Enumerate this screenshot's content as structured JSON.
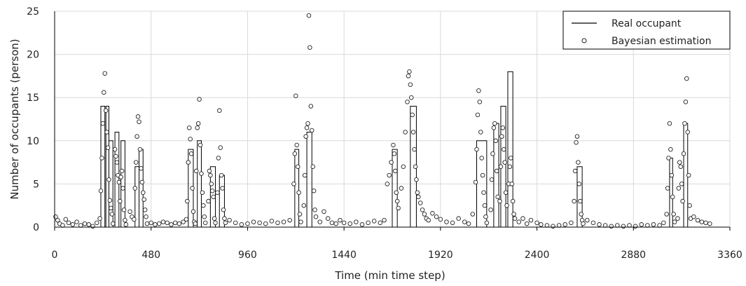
{
  "chart_data": {
    "type": "line",
    "xlabel": "Time (min time step)",
    "ylabel": "Number of occupants (person)",
    "xlim": [
      0,
      3360
    ],
    "ylim": [
      0,
      25
    ],
    "x_ticks": [
      0,
      480,
      960,
      1440,
      1920,
      2400,
      2880,
      3360
    ],
    "y_ticks": [
      0,
      5,
      10,
      15,
      20,
      25
    ],
    "grid": true,
    "legend_position": "top-right",
    "colors": {
      "line": "#000000",
      "marker_edge": "#222222",
      "grid": "#d9d9d9"
    },
    "series": [
      {
        "name": "Real occupant",
        "style": "step-line",
        "pulses": [
          [
            230,
            250,
            14
          ],
          [
            255,
            270,
            14
          ],
          [
            270,
            290,
            10
          ],
          [
            300,
            320,
            11
          ],
          [
            330,
            350,
            10
          ],
          [
            400,
            420,
            7
          ],
          [
            420,
            440,
            9
          ],
          [
            665,
            690,
            9
          ],
          [
            710,
            730,
            10
          ],
          [
            775,
            800,
            7
          ],
          [
            820,
            845,
            6
          ],
          [
            1195,
            1215,
            9
          ],
          [
            1255,
            1280,
            11
          ],
          [
            1680,
            1705,
            9
          ],
          [
            1770,
            1800,
            14
          ],
          [
            2100,
            2150,
            10
          ],
          [
            2185,
            2210,
            12
          ],
          [
            2220,
            2245,
            14
          ],
          [
            2255,
            2280,
            18
          ],
          [
            2600,
            2625,
            7
          ],
          [
            3060,
            3075,
            8
          ],
          [
            3130,
            3150,
            12
          ]
        ]
      },
      {
        "name": "Bayesian estimation",
        "style": "markers",
        "points": [
          [
            5,
            1.2
          ],
          [
            15,
            0.8
          ],
          [
            25,
            0.4
          ],
          [
            40,
            0.2
          ],
          [
            55,
            0.9
          ],
          [
            70,
            0.5
          ],
          [
            90,
            0.3
          ],
          [
            110,
            0.6
          ],
          [
            130,
            0.2
          ],
          [
            150,
            0.4
          ],
          [
            170,
            0.3
          ],
          [
            190,
            0.1
          ],
          [
            210,
            0.5
          ],
          [
            225,
            1.0
          ],
          [
            230,
            4.2
          ],
          [
            235,
            8.0
          ],
          [
            240,
            12.0
          ],
          [
            245,
            15.6
          ],
          [
            250,
            17.8
          ],
          [
            255,
            13.5
          ],
          [
            260,
            11.0
          ],
          [
            265,
            9.2
          ],
          [
            270,
            5.5
          ],
          [
            275,
            3.1
          ],
          [
            280,
            2.2
          ],
          [
            285,
            1.5
          ],
          [
            290,
            0.4
          ],
          [
            300,
            9.0
          ],
          [
            305,
            8.2
          ],
          [
            310,
            7.5
          ],
          [
            315,
            6.0
          ],
          [
            320,
            5.2
          ],
          [
            325,
            3.0
          ],
          [
            330,
            5.8
          ],
          [
            335,
            6.5
          ],
          [
            340,
            4.5
          ],
          [
            345,
            2.0
          ],
          [
            350,
            0.8
          ],
          [
            355,
            0.3
          ],
          [
            375,
            1.8
          ],
          [
            385,
            1.2
          ],
          [
            395,
            0.9
          ],
          [
            400,
            4.5
          ],
          [
            405,
            7.5
          ],
          [
            410,
            10.5
          ],
          [
            415,
            12.8
          ],
          [
            420,
            12.2
          ],
          [
            425,
            9.0
          ],
          [
            430,
            6.8
          ],
          [
            435,
            5.2
          ],
          [
            440,
            4.0
          ],
          [
            445,
            3.2
          ],
          [
            450,
            2.0
          ],
          [
            455,
            1.2
          ],
          [
            460,
            0.4
          ],
          [
            480,
            0.5
          ],
          [
            500,
            0.3
          ],
          [
            520,
            0.4
          ],
          [
            540,
            0.6
          ],
          [
            560,
            0.5
          ],
          [
            580,
            0.3
          ],
          [
            600,
            0.5
          ],
          [
            620,
            0.4
          ],
          [
            640,
            0.6
          ],
          [
            655,
            0.9
          ],
          [
            660,
            3.0
          ],
          [
            665,
            7.5
          ],
          [
            670,
            11.5
          ],
          [
            675,
            10.2
          ],
          [
            680,
            8.5
          ],
          [
            685,
            4.5
          ],
          [
            690,
            1.8
          ],
          [
            695,
            0.6
          ],
          [
            700,
            0.4
          ],
          [
            705,
            6.5
          ],
          [
            710,
            11.5
          ],
          [
            715,
            12.0
          ],
          [
            720,
            14.8
          ],
          [
            725,
            9.5
          ],
          [
            730,
            6.2
          ],
          [
            735,
            4.0
          ],
          [
            740,
            2.5
          ],
          [
            745,
            1.2
          ],
          [
            750,
            0.5
          ],
          [
            765,
            3.0
          ],
          [
            770,
            6.5
          ],
          [
            775,
            6.0
          ],
          [
            780,
            5.0
          ],
          [
            785,
            4.2
          ],
          [
            790,
            3.5
          ],
          [
            795,
            1.0
          ],
          [
            800,
            0.5
          ],
          [
            810,
            4.0
          ],
          [
            815,
            8.0
          ],
          [
            820,
            13.5
          ],
          [
            825,
            9.2
          ],
          [
            830,
            6.0
          ],
          [
            835,
            4.5
          ],
          [
            840,
            2.0
          ],
          [
            845,
            1.0
          ],
          [
            850,
            0.5
          ],
          [
            870,
            0.8
          ],
          [
            900,
            0.5
          ],
          [
            930,
            0.3
          ],
          [
            960,
            0.4
          ],
          [
            990,
            0.6
          ],
          [
            1020,
            0.5
          ],
          [
            1050,
            0.4
          ],
          [
            1080,
            0.7
          ],
          [
            1110,
            0.5
          ],
          [
            1140,
            0.6
          ],
          [
            1170,
            0.8
          ],
          [
            1190,
            5.0
          ],
          [
            1195,
            8.5
          ],
          [
            1200,
            15.2
          ],
          [
            1205,
            9.5
          ],
          [
            1210,
            7.0
          ],
          [
            1215,
            4.0
          ],
          [
            1220,
            1.5
          ],
          [
            1225,
            0.6
          ],
          [
            1240,
            2.5
          ],
          [
            1245,
            6.0
          ],
          [
            1250,
            10.5
          ],
          [
            1255,
            11.5
          ],
          [
            1260,
            12.0
          ],
          [
            1265,
            24.5
          ],
          [
            1270,
            20.8
          ],
          [
            1275,
            14.0
          ],
          [
            1280,
            11.2
          ],
          [
            1285,
            7.0
          ],
          [
            1290,
            4.2
          ],
          [
            1295,
            2.0
          ],
          [
            1300,
            1.2
          ],
          [
            1320,
            0.6
          ],
          [
            1340,
            1.8
          ],
          [
            1360,
            1.0
          ],
          [
            1380,
            0.5
          ],
          [
            1400,
            0.4
          ],
          [
            1420,
            0.8
          ],
          [
            1440,
            0.5
          ],
          [
            1470,
            0.4
          ],
          [
            1500,
            0.6
          ],
          [
            1530,
            0.3
          ],
          [
            1560,
            0.5
          ],
          [
            1590,
            0.7
          ],
          [
            1620,
            0.5
          ],
          [
            1640,
            0.8
          ],
          [
            1655,
            5.0
          ],
          [
            1665,
            6.0
          ],
          [
            1675,
            7.5
          ],
          [
            1685,
            9.5
          ],
          [
            1690,
            8.5
          ],
          [
            1695,
            6.5
          ],
          [
            1700,
            4.0
          ],
          [
            1705,
            3.0
          ],
          [
            1710,
            2.2
          ],
          [
            1725,
            4.5
          ],
          [
            1735,
            7.0
          ],
          [
            1745,
            11.0
          ],
          [
            1755,
            14.5
          ],
          [
            1760,
            17.5
          ],
          [
            1765,
            18.0
          ],
          [
            1770,
            16.5
          ],
          [
            1775,
            15.0
          ],
          [
            1780,
            13.0
          ],
          [
            1785,
            11.0
          ],
          [
            1790,
            9.0
          ],
          [
            1795,
            7.0
          ],
          [
            1800,
            5.5
          ],
          [
            1805,
            4.0
          ],
          [
            1810,
            3.5
          ],
          [
            1820,
            2.8
          ],
          [
            1830,
            2.0
          ],
          [
            1840,
            1.5
          ],
          [
            1850,
            1.0
          ],
          [
            1860,
            0.8
          ],
          [
            1880,
            1.6
          ],
          [
            1900,
            1.2
          ],
          [
            1920,
            0.9
          ],
          [
            1950,
            0.6
          ],
          [
            1980,
            0.5
          ],
          [
            2010,
            1.0
          ],
          [
            2040,
            0.6
          ],
          [
            2060,
            0.4
          ],
          [
            2080,
            1.5
          ],
          [
            2095,
            5.2
          ],
          [
            2100,
            9.0
          ],
          [
            2105,
            13.0
          ],
          [
            2110,
            15.8
          ],
          [
            2115,
            14.5
          ],
          [
            2120,
            11.0
          ],
          [
            2125,
            8.0
          ],
          [
            2130,
            6.0
          ],
          [
            2135,
            4.0
          ],
          [
            2140,
            2.5
          ],
          [
            2145,
            1.2
          ],
          [
            2150,
            0.5
          ],
          [
            2170,
            2.0
          ],
          [
            2175,
            5.5
          ],
          [
            2180,
            8.5
          ],
          [
            2185,
            11.5
          ],
          [
            2190,
            12.0
          ],
          [
            2195,
            10.0
          ],
          [
            2200,
            6.5
          ],
          [
            2205,
            3.5
          ],
          [
            2215,
            3.0
          ],
          [
            2220,
            7.0
          ],
          [
            2225,
            10.5
          ],
          [
            2230,
            11.5
          ],
          [
            2235,
            9.0
          ],
          [
            2240,
            7.5
          ],
          [
            2245,
            4.0
          ],
          [
            2250,
            2.5
          ],
          [
            2260,
            5.0
          ],
          [
            2265,
            7.0
          ],
          [
            2270,
            8.0
          ],
          [
            2275,
            5.0
          ],
          [
            2280,
            3.0
          ],
          [
            2285,
            1.5
          ],
          [
            2290,
            1.0
          ],
          [
            2310,
            0.6
          ],
          [
            2330,
            1.0
          ],
          [
            2350,
            0.4
          ],
          [
            2370,
            0.8
          ],
          [
            2400,
            0.5
          ],
          [
            2420,
            0.3
          ],
          [
            2450,
            0.2
          ],
          [
            2480,
            0.1
          ],
          [
            2510,
            0.2
          ],
          [
            2540,
            0.3
          ],
          [
            2570,
            0.5
          ],
          [
            2585,
            3.0
          ],
          [
            2590,
            6.5
          ],
          [
            2595,
            9.8
          ],
          [
            2600,
            10.5
          ],
          [
            2605,
            7.5
          ],
          [
            2610,
            5.0
          ],
          [
            2615,
            3.0
          ],
          [
            2620,
            1.5
          ],
          [
            2625,
            0.8
          ],
          [
            2630,
            0.4
          ],
          [
            2650,
            0.8
          ],
          [
            2680,
            0.5
          ],
          [
            2710,
            0.3
          ],
          [
            2740,
            0.2
          ],
          [
            2770,
            0.1
          ],
          [
            2800,
            0.2
          ],
          [
            2830,
            0.1
          ],
          [
            2860,
            0.2
          ],
          [
            2890,
            0.1
          ],
          [
            2920,
            0.3
          ],
          [
            2950,
            0.2
          ],
          [
            2980,
            0.3
          ],
          [
            3010,
            0.2
          ],
          [
            3030,
            0.5
          ],
          [
            3045,
            1.5
          ],
          [
            3050,
            4.5
          ],
          [
            3055,
            8.0
          ],
          [
            3060,
            12.0
          ],
          [
            3065,
            9.0
          ],
          [
            3070,
            6.0
          ],
          [
            3075,
            3.5
          ],
          [
            3080,
            1.5
          ],
          [
            3085,
            0.6
          ],
          [
            3100,
            1.0
          ],
          [
            3105,
            4.5
          ],
          [
            3110,
            7.5
          ],
          [
            3115,
            7.0
          ],
          [
            3120,
            5.0
          ],
          [
            3125,
            3.0
          ],
          [
            3130,
            8.5
          ],
          [
            3135,
            12.0
          ],
          [
            3140,
            14.5
          ],
          [
            3145,
            17.2
          ],
          [
            3150,
            11.0
          ],
          [
            3155,
            6.0
          ],
          [
            3160,
            2.5
          ],
          [
            3165,
            1.0
          ],
          [
            3180,
            1.2
          ],
          [
            3200,
            0.8
          ],
          [
            3220,
            0.6
          ],
          [
            3240,
            0.5
          ],
          [
            3260,
            0.4
          ]
        ]
      }
    ]
  }
}
